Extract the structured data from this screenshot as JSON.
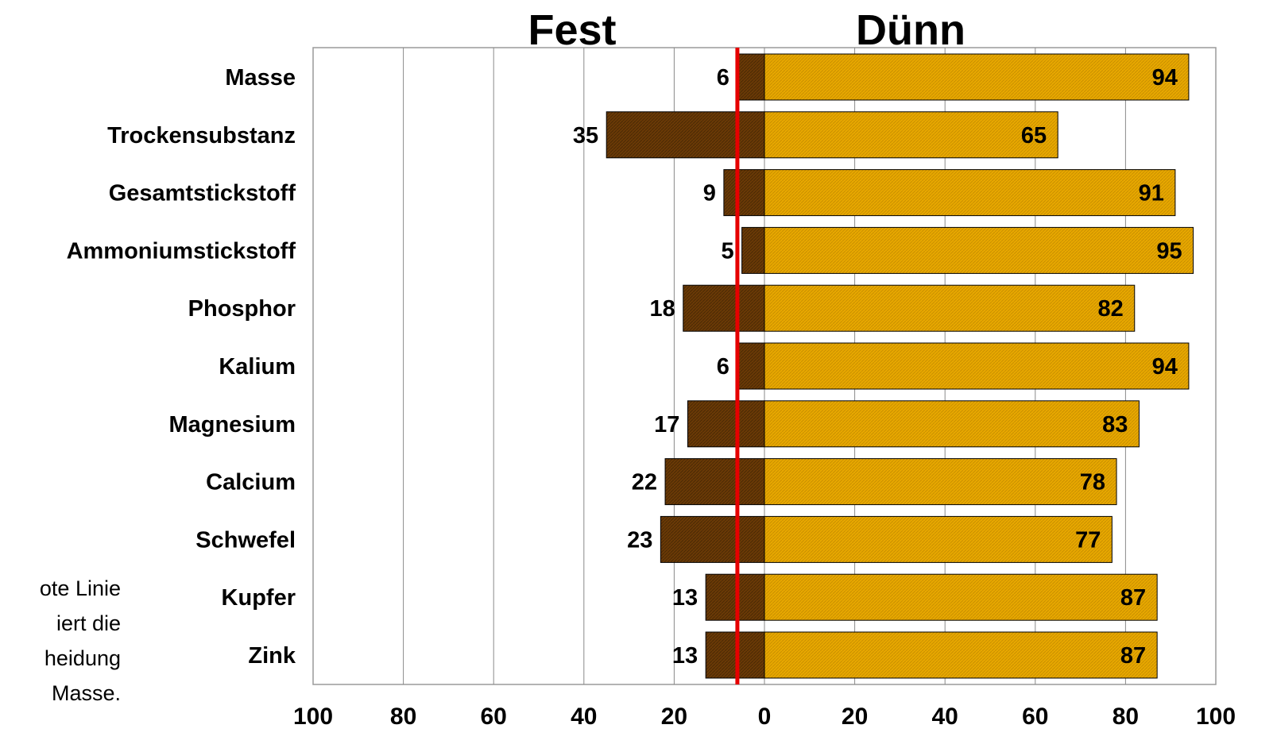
{
  "chart_data": {
    "type": "bar",
    "orientation": "horizontal-diverging",
    "left_title": "Fest",
    "right_title": "Dünn",
    "categories": [
      "Masse",
      "Trockensubstanz",
      "Gesamtstickstoff",
      "Ammoniumstickstoff",
      "Phosphor",
      "Kalium",
      "Magnesium",
      "Calcium",
      "Schwefel",
      "Kupfer",
      "Zink"
    ],
    "series": [
      {
        "name": "Fest",
        "values": [
          6,
          35,
          9,
          5,
          18,
          6,
          17,
          22,
          23,
          13,
          13
        ],
        "color": "#6b3a06"
      },
      {
        "name": "Dünn",
        "values": [
          94,
          65,
          91,
          95,
          82,
          94,
          83,
          78,
          77,
          87,
          87
        ],
        "color": "#e8a800"
      }
    ],
    "x_ticks": [
      "100",
      "80",
      "60",
      "40",
      "20",
      "0",
      "20",
      "40",
      "60",
      "80",
      "100"
    ],
    "xlim_left": [
      0,
      100
    ],
    "xlim_right": [
      0,
      100
    ],
    "reference_line": {
      "value": 6,
      "side": "left",
      "color": "#e60000"
    },
    "grid": true
  },
  "note_lines": [
    "ote Linie",
    "iert die",
    "heidung",
    "Masse."
  ]
}
